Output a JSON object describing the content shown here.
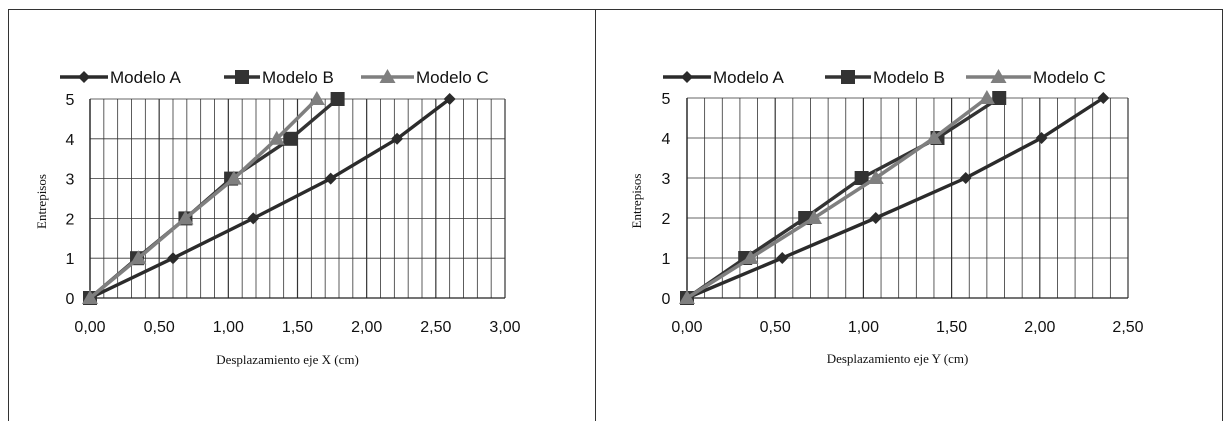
{
  "chart_data": [
    {
      "type": "line",
      "xlabel": "Desplazamiento eje X (cm)",
      "ylabel": "Entrepisos",
      "xlim": [
        0,
        3
      ],
      "ylim": [
        0,
        5
      ],
      "x_ticks": [
        "0,00",
        "0,50",
        "1,00",
        "1,50",
        "2,00",
        "2,50",
        "3,00"
      ],
      "y_ticks": [
        "0",
        "1",
        "2",
        "3",
        "4",
        "5"
      ],
      "x_minor_step": 0.1,
      "grid": true,
      "legend": "top",
      "series": [
        {
          "name": "Modelo A",
          "marker": "diamond",
          "color": "#2b2b2b",
          "points": [
            [
              0.0,
              0
            ],
            [
              0.6,
              1
            ],
            [
              1.18,
              2
            ],
            [
              1.74,
              3
            ],
            [
              2.22,
              4
            ],
            [
              2.6,
              5
            ]
          ]
        },
        {
          "name": "Modelo B",
          "marker": "square",
          "color": "#333333",
          "points": [
            [
              0.0,
              0
            ],
            [
              0.34,
              1
            ],
            [
              0.69,
              2
            ],
            [
              1.02,
              3
            ],
            [
              1.45,
              4
            ],
            [
              1.79,
              5
            ]
          ]
        },
        {
          "name": "Modelo C",
          "marker": "triangle",
          "color": "#7f7f7f",
          "points": [
            [
              0.0,
              0
            ],
            [
              0.35,
              1
            ],
            [
              0.69,
              2
            ],
            [
              1.04,
              3
            ],
            [
              1.35,
              4
            ],
            [
              1.64,
              5
            ]
          ]
        }
      ]
    },
    {
      "type": "line",
      "xlabel": "Desplazamiento eje Y (cm)",
      "ylabel": "Entrepisos",
      "xlim": [
        0,
        2.5
      ],
      "ylim": [
        0,
        5
      ],
      "x_ticks": [
        "0,00",
        "0,50",
        "1,00",
        "1,50",
        "2,00",
        "2,50"
      ],
      "y_ticks": [
        "0",
        "1",
        "2",
        "3",
        "4",
        "5"
      ],
      "x_minor_step": 0.1,
      "grid": true,
      "legend": "top",
      "series": [
        {
          "name": "Modelo A",
          "marker": "diamond",
          "color": "#2b2b2b",
          "points": [
            [
              0.0,
              0
            ],
            [
              0.54,
              1
            ],
            [
              1.07,
              2
            ],
            [
              1.58,
              3
            ],
            [
              2.01,
              4
            ],
            [
              2.36,
              5
            ]
          ]
        },
        {
          "name": "Modelo B",
          "marker": "square",
          "color": "#333333",
          "points": [
            [
              0.0,
              0
            ],
            [
              0.33,
              1
            ],
            [
              0.67,
              2
            ],
            [
              0.99,
              3
            ],
            [
              1.42,
              4
            ],
            [
              1.77,
              5
            ]
          ]
        },
        {
          "name": "Modelo C",
          "marker": "triangle",
          "color": "#7f7f7f",
          "points": [
            [
              0.0,
              0
            ],
            [
              0.36,
              1
            ],
            [
              0.72,
              2
            ],
            [
              1.07,
              3
            ],
            [
              1.4,
              4
            ],
            [
              1.7,
              5
            ]
          ]
        }
      ]
    }
  ]
}
